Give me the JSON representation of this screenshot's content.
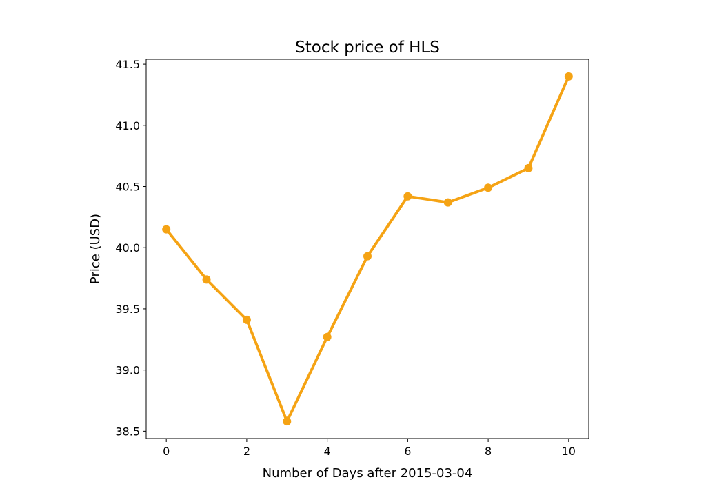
{
  "chart_data": {
    "type": "line",
    "title": "Stock price of HLS",
    "xlabel": "Number of Days after 2015-03-04",
    "ylabel": "Price (USD)",
    "x": [
      0,
      1,
      2,
      3,
      4,
      5,
      6,
      7,
      8,
      9,
      10
    ],
    "series": [
      {
        "values": [
          40.15,
          39.74,
          39.41,
          38.58,
          39.27,
          39.93,
          40.42,
          40.37,
          40.49,
          40.65,
          41.4
        ],
        "color": "#f5a314",
        "marker": "circle"
      }
    ],
    "xlim": [
      -0.5,
      10.5
    ],
    "ylim": [
      38.44,
      41.54
    ],
    "xticks": [
      0,
      2,
      4,
      6,
      8,
      10
    ],
    "xtick_labels": [
      "0",
      "2",
      "4",
      "6",
      "8",
      "10"
    ],
    "yticks": [
      38.5,
      39.0,
      39.5,
      40.0,
      40.5,
      41.0,
      41.5
    ],
    "ytick_labels": [
      "38.5",
      "39.0",
      "39.5",
      "40.0",
      "40.5",
      "41.0",
      "41.5"
    ],
    "grid": false,
    "legend": null
  }
}
